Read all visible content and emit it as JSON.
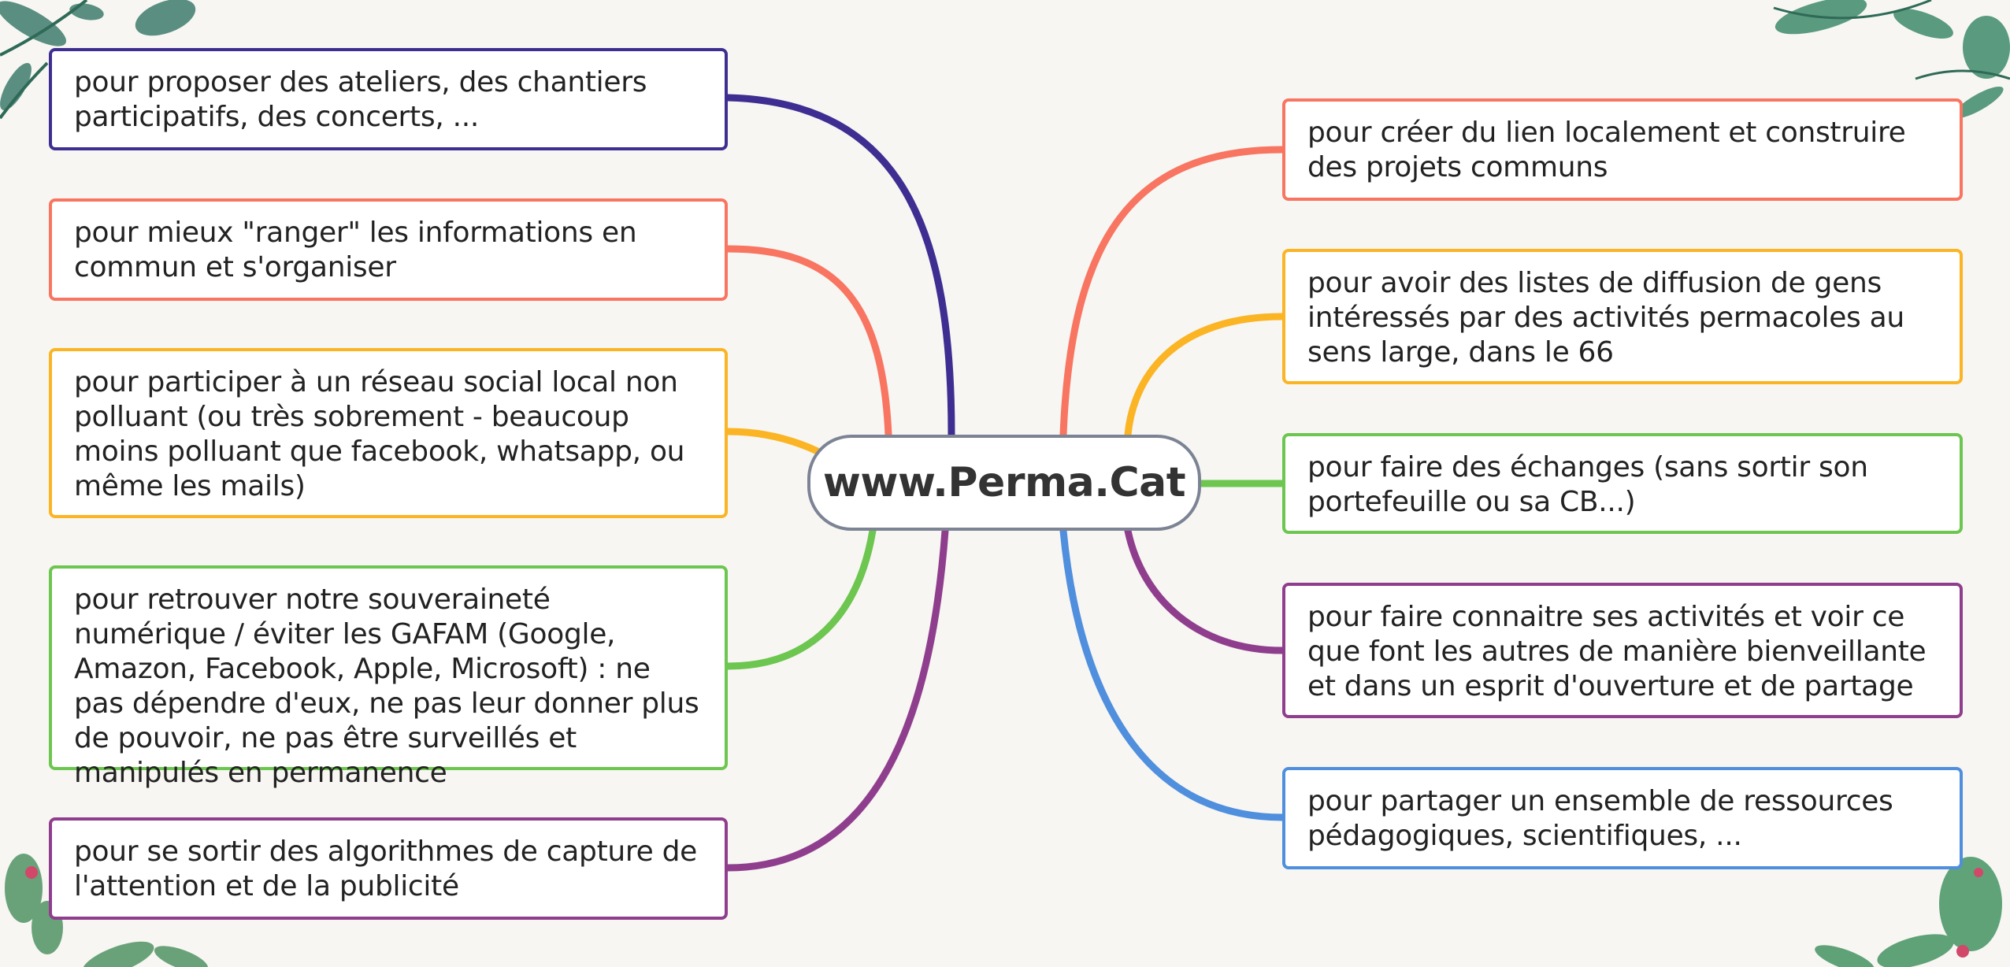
{
  "center": {
    "label": "www.Perma.Cat"
  },
  "colors": {
    "navy": "#3f2e91",
    "coral": "#f87561",
    "amber": "#fbb424",
    "green": "#6cc64f",
    "purple": "#8f3e8e",
    "blue": "#4f8fdd"
  },
  "branches": [
    {
      "id": "b1",
      "side": "left",
      "color": "#3f2e91",
      "text": "pour proposer des ateliers, des chantiers participatifs, des concerts, ..."
    },
    {
      "id": "b2",
      "side": "left",
      "color": "#f87561",
      "text": "pour mieux \"ranger\" les informations en commun et s'organiser"
    },
    {
      "id": "b3",
      "side": "left",
      "color": "#fbb424",
      "text": "pour participer à un réseau social local non polluant (ou très sobrement - beaucoup moins polluant que facebook, whatsapp, ou même les mails)"
    },
    {
      "id": "b4",
      "side": "left",
      "color": "#6cc64f",
      "text": "pour retrouver notre souveraineté numérique / éviter les GAFAM (Google, Amazon, Facebook, Apple, Microsoft) : ne pas dépendre d'eux, ne pas leur donner plus de pouvoir, ne pas être surveillés et manipulés en permanence"
    },
    {
      "id": "b5",
      "side": "left",
      "color": "#8f3e8e",
      "text": "pour se sortir des algorithmes de capture de l'attention et de la publicité"
    },
    {
      "id": "b6",
      "side": "right",
      "color": "#f87561",
      "text": "pour créer du lien localement et construire des projets communs"
    },
    {
      "id": "b7",
      "side": "right",
      "color": "#fbb424",
      "text": "pour avoir des listes de diffusion de gens intéressés par des activités permacoles au sens large, dans le 66"
    },
    {
      "id": "b8",
      "side": "right",
      "color": "#6cc64f",
      "text": "pour faire des échanges (sans sortir son portefeuille ou sa CB...)"
    },
    {
      "id": "b9",
      "side": "right",
      "color": "#8f3e8e",
      "text": "pour faire connaitre ses activités et voir ce que font les autres de manière bienveillante et dans un esprit d'ouverture et de partage"
    },
    {
      "id": "b10",
      "side": "right",
      "color": "#4f8fdd",
      "text": "pour partager un ensemble de ressources pédagogiques, scientifiques, ..."
    }
  ]
}
